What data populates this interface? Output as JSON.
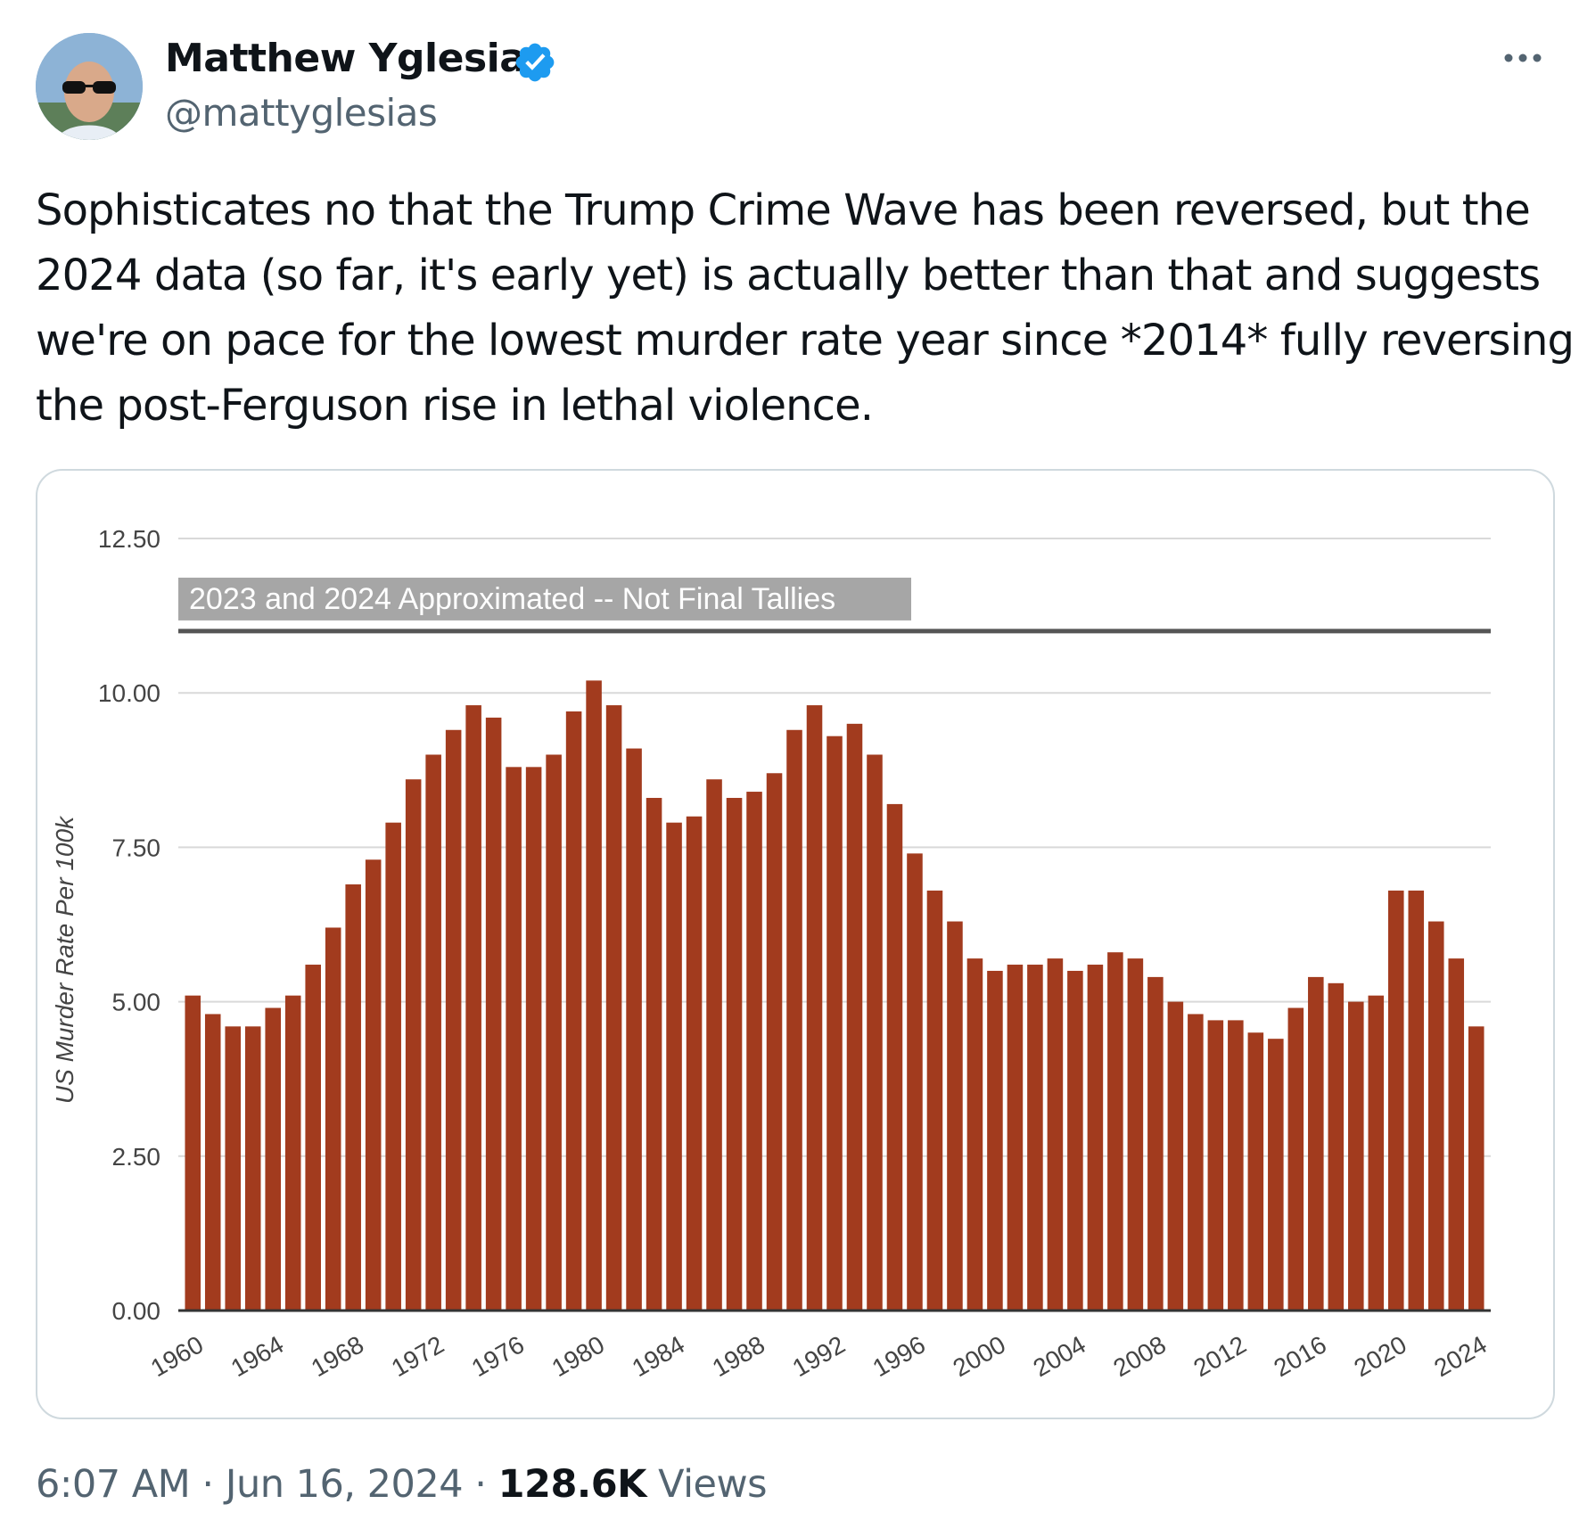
{
  "author": {
    "name": "Matthew Yglesias",
    "handle": "@mattyglesias",
    "verified": true,
    "verified_color": "#1d9bf0"
  },
  "icons": {
    "avatar": "profile-photo",
    "verified": "verified-badge-icon",
    "more": "more-options-icon"
  },
  "tweet": {
    "lines": [
      "Sophisticates no that the Trump Crime Wave has been reversed, but the",
      "2024 data (so far, it's early yet) is actually better than that and suggests",
      "we're on pace for the lowest murder rate year since *2014* fully reversing",
      "the post-Ferguson rise in lethal violence."
    ]
  },
  "meta": {
    "time": "6:07 AM",
    "separator": "·",
    "date": "Jun 16, 2024",
    "views_count": "128.6K",
    "views_label": "Views"
  },
  "chart_data": {
    "type": "bar",
    "title": "",
    "annotation": "2023 and 2024 Approximated -- Not Final Tallies",
    "xlabel": "",
    "ylabel": "US Murder Rate Per 100k",
    "ylim": [
      0,
      12.5
    ],
    "yticks": [
      "0.00",
      "2.50",
      "5.00",
      "7.50",
      "10.00",
      "12.50"
    ],
    "reference_line": 11.0,
    "grid": true,
    "bar_color": "#a23b1e",
    "x_tick_labels": [
      "1960",
      "1964",
      "1968",
      "1972",
      "1976",
      "1980",
      "1984",
      "1988",
      "1992",
      "1996",
      "2000",
      "2004",
      "2008",
      "2012",
      "2016",
      "2020",
      "2024"
    ],
    "categories": [
      1960,
      1961,
      1962,
      1963,
      1964,
      1965,
      1966,
      1967,
      1968,
      1969,
      1970,
      1971,
      1972,
      1973,
      1974,
      1975,
      1976,
      1977,
      1978,
      1979,
      1980,
      1981,
      1982,
      1983,
      1984,
      1985,
      1986,
      1987,
      1988,
      1989,
      1990,
      1991,
      1992,
      1993,
      1994,
      1995,
      1996,
      1997,
      1998,
      1999,
      2000,
      2001,
      2002,
      2003,
      2004,
      2005,
      2006,
      2007,
      2008,
      2009,
      2010,
      2011,
      2012,
      2013,
      2014,
      2015,
      2016,
      2017,
      2018,
      2019,
      2020,
      2021,
      2022,
      2023,
      2024
    ],
    "values": [
      5.1,
      4.8,
      4.6,
      4.6,
      4.9,
      5.1,
      5.6,
      6.2,
      6.9,
      7.3,
      7.9,
      8.6,
      9.0,
      9.4,
      9.8,
      9.6,
      8.8,
      8.8,
      9.0,
      9.7,
      10.2,
      9.8,
      9.1,
      8.3,
      7.9,
      8.0,
      8.6,
      8.3,
      8.4,
      8.7,
      9.4,
      9.8,
      9.3,
      9.5,
      9.0,
      8.2,
      7.4,
      6.8,
      6.3,
      5.7,
      5.5,
      5.6,
      5.6,
      5.7,
      5.5,
      5.6,
      5.8,
      5.7,
      5.4,
      5.0,
      4.8,
      4.7,
      4.7,
      4.5,
      4.4,
      4.9,
      5.4,
      5.3,
      5.0,
      5.1,
      6.8,
      6.8,
      6.3,
      5.7,
      4.6
    ]
  }
}
